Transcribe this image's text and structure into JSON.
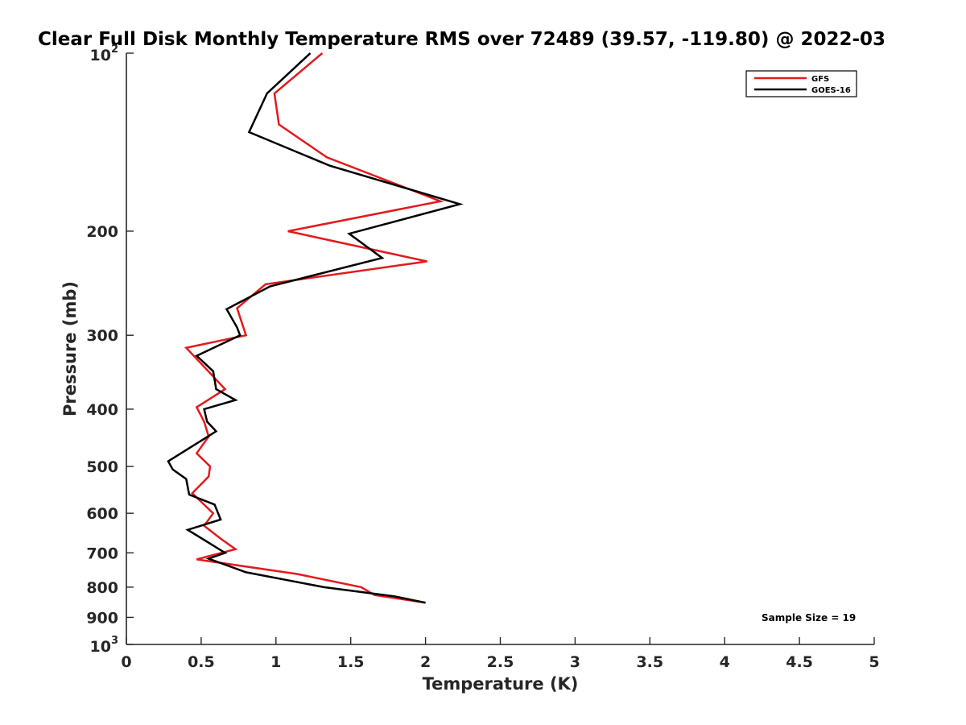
{
  "chart_data": {
    "type": "line",
    "title": "Clear Full Disk Monthly Temperature RMS over 72489 (39.57, -119.80) @ 2022-03",
    "xlabel": "Temperature (K)",
    "ylabel": "Pressure (mb)",
    "xlim": [
      0,
      5
    ],
    "ylim": [
      100,
      1000
    ],
    "yscale": "log",
    "yreversed": true,
    "xticks": [
      0,
      0.5,
      1,
      1.5,
      2,
      2.5,
      3,
      3.5,
      4,
      4.5,
      5
    ],
    "xtick_labels": [
      "0",
      "0.5",
      "1",
      "1.5",
      "2",
      "2.5",
      "3",
      "3.5",
      "4",
      "4.5",
      "5"
    ],
    "yticks": [
      200,
      300,
      400,
      500,
      600,
      700,
      800,
      900
    ],
    "ytick_labels": [
      "200",
      "300",
      "400",
      "500",
      "600",
      "700",
      "800",
      "900"
    ],
    "ylim_labels": {
      "top_base": "10",
      "top_exp": "2",
      "bottom_base": "10",
      "bottom_exp": "3"
    },
    "legend_position": "top-right",
    "series": [
      {
        "name": "GFS",
        "color": "#e31a1c",
        "points": [
          [
            1.31,
            100
          ],
          [
            0.99,
            117
          ],
          [
            1.02,
            132
          ],
          [
            1.34,
            150
          ],
          [
            2.1,
            178
          ],
          [
            1.08,
            200
          ],
          [
            2.01,
            225
          ],
          [
            0.93,
            246
          ],
          [
            0.74,
            270
          ],
          [
            0.8,
            300
          ],
          [
            0.4,
            315
          ],
          [
            0.5,
            335
          ],
          [
            0.66,
            370
          ],
          [
            0.47,
            397
          ],
          [
            0.52,
            420
          ],
          [
            0.55,
            445
          ],
          [
            0.47,
            475
          ],
          [
            0.56,
            500
          ],
          [
            0.55,
            520
          ],
          [
            0.44,
            555
          ],
          [
            0.58,
            600
          ],
          [
            0.52,
            630
          ],
          [
            0.64,
            665
          ],
          [
            0.73,
            690
          ],
          [
            0.47,
            718
          ],
          [
            1.14,
            760
          ],
          [
            1.57,
            800
          ],
          [
            1.66,
            825
          ],
          [
            2.0,
            850
          ]
        ]
      },
      {
        "name": "GOES-16",
        "color": "#000000",
        "points": [
          [
            1.23,
            100
          ],
          [
            0.94,
            117
          ],
          [
            0.82,
            136
          ],
          [
            1.36,
            155
          ],
          [
            2.23,
            180
          ],
          [
            1.49,
            202
          ],
          [
            1.71,
            222
          ],
          [
            0.96,
            248
          ],
          [
            0.67,
            271
          ],
          [
            0.74,
            291
          ],
          [
            0.76,
            300
          ],
          [
            0.47,
            325
          ],
          [
            0.58,
            345
          ],
          [
            0.6,
            370
          ],
          [
            0.73,
            386
          ],
          [
            0.52,
            400
          ],
          [
            0.54,
            420
          ],
          [
            0.6,
            436
          ],
          [
            0.28,
            490
          ],
          [
            0.31,
            506
          ],
          [
            0.4,
            525
          ],
          [
            0.42,
            558
          ],
          [
            0.59,
            580
          ],
          [
            0.63,
            615
          ],
          [
            0.41,
            640
          ],
          [
            0.66,
            700
          ],
          [
            0.55,
            716
          ],
          [
            0.8,
            755
          ],
          [
            1.32,
            800
          ],
          [
            1.79,
            829
          ],
          [
            2.0,
            850
          ]
        ]
      }
    ],
    "annotation": "Sample Size = 19"
  }
}
